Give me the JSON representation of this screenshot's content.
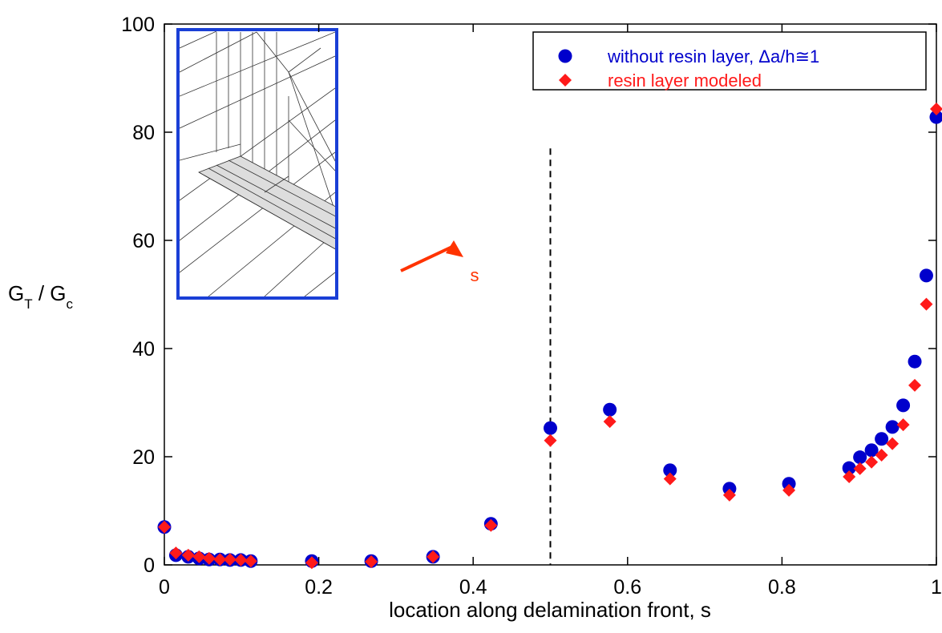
{
  "chart_data": {
    "type": "scatter",
    "xlabel": "location along delamination front, s",
    "ylabel_parts": [
      "G",
      "T",
      " / G",
      "c"
    ],
    "xlim": [
      0,
      1
    ],
    "ylim": [
      0,
      100
    ],
    "xticks": [
      0,
      0.2,
      0.4,
      0.6,
      0.8,
      1
    ],
    "yticks": [
      0,
      20,
      40,
      60,
      80,
      100
    ],
    "grid": false,
    "legend": "top-right",
    "reference_line": {
      "x": 0.5,
      "ymax": 77
    },
    "inset_label": "s",
    "series": [
      {
        "name": "without resin layer,  Δa/h≅1",
        "color": "#0000cc",
        "marker": "circle",
        "x": [
          0,
          0.015,
          0.031,
          0.045,
          0.058,
          0.072,
          0.085,
          0.099,
          0.112,
          0.191,
          0.268,
          0.348,
          0.423,
          0.5,
          0.577,
          0.655,
          0.732,
          0.809,
          0.887,
          0.901,
          0.916,
          0.929,
          0.943,
          0.957,
          0.972,
          0.987,
          1.0
        ],
        "values": [
          7.0,
          1.8,
          1.5,
          1.2,
          1.0,
          1.0,
          0.9,
          0.9,
          0.7,
          0.7,
          0.7,
          1.5,
          7.6,
          25.3,
          28.7,
          17.5,
          14.1,
          15.0,
          17.9,
          19.9,
          21.2,
          23.3,
          25.5,
          29.5,
          37.6,
          53.5,
          82.8
        ]
      },
      {
        "name": "resin layer modeled",
        "color": "#ff1a1a",
        "marker": "diamond",
        "x": [
          0,
          0.015,
          0.031,
          0.045,
          0.058,
          0.072,
          0.085,
          0.099,
          0.112,
          0.191,
          0.268,
          0.348,
          0.423,
          0.5,
          0.577,
          0.655,
          0.732,
          0.809,
          0.887,
          0.901,
          0.916,
          0.929,
          0.943,
          0.957,
          0.972,
          0.987,
          1.0
        ],
        "values": [
          7.0,
          2.2,
          1.8,
          1.5,
          1.2,
          1.0,
          1.0,
          0.9,
          0.7,
          0.4,
          0.6,
          1.5,
          7.3,
          23.0,
          26.5,
          15.9,
          12.9,
          13.8,
          16.3,
          17.8,
          19.0,
          20.3,
          22.4,
          25.9,
          33.2,
          48.2,
          84.3
        ]
      }
    ]
  }
}
